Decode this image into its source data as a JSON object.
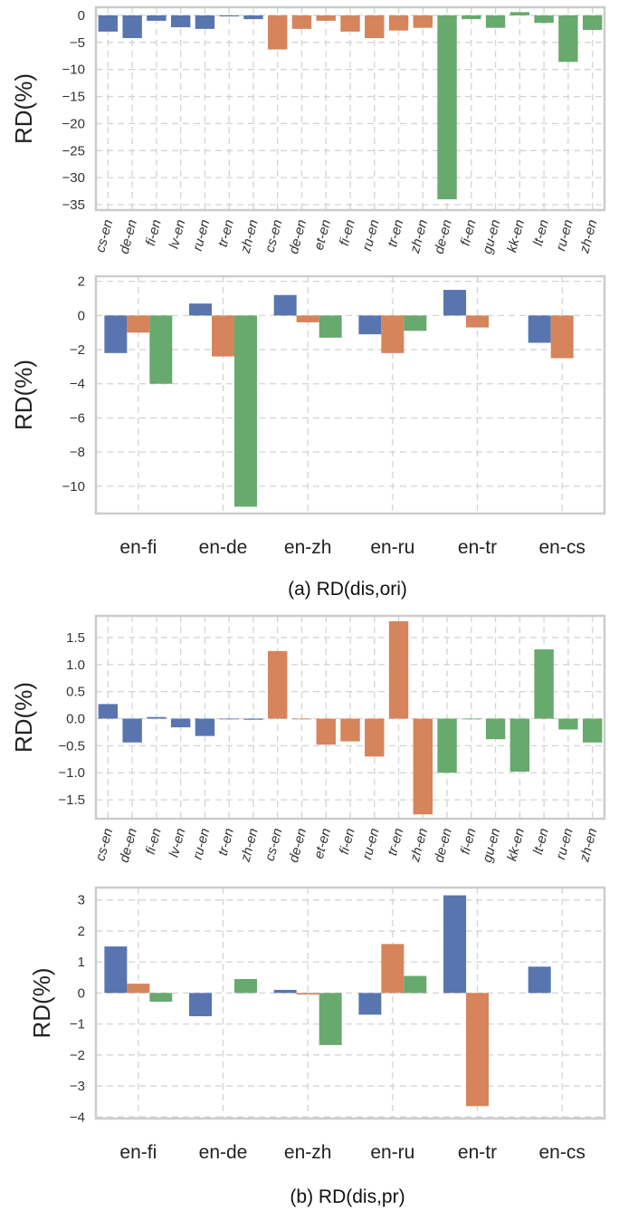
{
  "colors": {
    "blue": "#5875b0",
    "orange": "#d6845b",
    "green": "#68a96e",
    "grid": "#d4d4d4",
    "frame": "#cccccc"
  },
  "captions": {
    "a": "(a) RD(dis,ori)",
    "b": "(b) RD(dis,pr)"
  },
  "chart_data": [
    {
      "type": "bar",
      "ylabel": "RD(%)",
      "ylim": [
        -36,
        1.5
      ],
      "yticks": [
        0,
        -5,
        -10,
        -15,
        -20,
        -25,
        -30,
        -35
      ],
      "grid": true,
      "categories": [
        "cs-en",
        "de-en",
        "fi-en",
        "lv-en",
        "ru-en",
        "tr-en",
        "zh-en",
        "cs-en",
        "de-en",
        "et-en",
        "fi-en",
        "ru-en",
        "tr-en",
        "zh-en",
        "de-en",
        "fi-en",
        "gu-en",
        "kk-en",
        "lt-en",
        "ru-en",
        "zh-en"
      ],
      "group_sizes": [
        7,
        7,
        7
      ],
      "values": [
        -3.0,
        -4.2,
        -1.0,
        -2.2,
        -2.5,
        -0.2,
        -0.7,
        -6.3,
        -2.5,
        -1.0,
        -3.0,
        -4.2,
        -2.8,
        -2.3,
        -34.0,
        -0.7,
        -2.3,
        0.6,
        -1.4,
        -8.6,
        -2.7
      ]
    },
    {
      "type": "bar",
      "ylabel": "RD(%)",
      "ylim": [
        -11.6,
        2.3
      ],
      "yticks": [
        2,
        0,
        -2,
        -4,
        -6,
        -8,
        -10
      ],
      "grid": true,
      "categories": [
        "en-fi",
        "en-de",
        "en-zh",
        "en-ru",
        "en-tr",
        "en-cs"
      ],
      "series": [
        {
          "values": [
            -2.2,
            0.7,
            1.2,
            -1.1,
            1.5,
            -1.6
          ]
        },
        {
          "values": [
            -1.0,
            -2.4,
            -0.4,
            -2.2,
            -0.7,
            -2.5
          ]
        },
        {
          "values": [
            -4.0,
            -11.2,
            -1.3,
            -0.9,
            null,
            null
          ]
        }
      ]
    },
    {
      "type": "bar",
      "ylabel": "RD(%)",
      "ylim": [
        -1.85,
        1.9
      ],
      "yticks": [
        1.5,
        1.0,
        0.5,
        0.0,
        -0.5,
        -1.0,
        -1.5
      ],
      "grid": true,
      "categories": [
        "cs-en",
        "de-en",
        "fi-en",
        "lv-en",
        "ru-en",
        "tr-en",
        "zh-en",
        "cs-en",
        "de-en",
        "et-en",
        "fi-en",
        "ru-en",
        "tr-en",
        "zh-en",
        "de-en",
        "fi-en",
        "gu-en",
        "kk-en",
        "lt-en",
        "ru-en",
        "zh-en"
      ],
      "group_sizes": [
        7,
        7,
        7
      ],
      "values": [
        0.27,
        -0.44,
        0.03,
        -0.16,
        -0.32,
        -0.01,
        -0.02,
        1.25,
        0.0,
        -0.48,
        -0.42,
        -0.7,
        1.8,
        -1.77,
        -1.0,
        -0.01,
        -0.38,
        -0.98,
        1.28,
        -0.2,
        -0.44
      ]
    },
    {
      "type": "bar",
      "ylabel": "RD(%)",
      "ylim": [
        -4.05,
        3.4
      ],
      "yticks": [
        3,
        2,
        1,
        0,
        -1,
        -2,
        -3,
        -4
      ],
      "grid": true,
      "categories": [
        "en-fi",
        "en-de",
        "en-zh",
        "en-ru",
        "en-tr",
        "en-cs"
      ],
      "series": [
        {
          "values": [
            1.5,
            -0.75,
            0.1,
            -0.7,
            3.15,
            0.85
          ]
        },
        {
          "values": [
            0.3,
            null,
            -0.05,
            1.58,
            -3.65,
            null
          ]
        },
        {
          "values": [
            -0.28,
            0.45,
            -1.68,
            0.55,
            null,
            null
          ]
        }
      ]
    }
  ]
}
